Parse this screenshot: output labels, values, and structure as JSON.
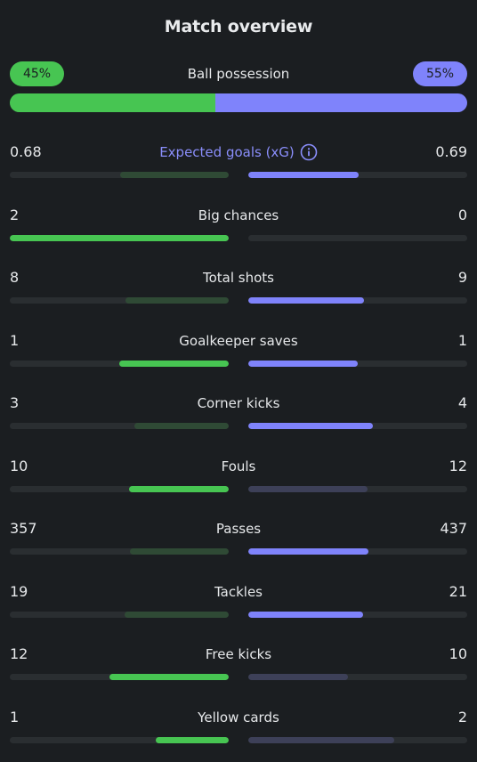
{
  "title": "Match overview",
  "possession": {
    "label": "Ball possession",
    "home": "45%",
    "away": "55%",
    "home_fraction": 0.45,
    "away_fraction": 0.55
  },
  "colors": {
    "home": "#47c552",
    "away": "#7f83fb",
    "home_dim": "#2f4a35",
    "away_dim": "#3d4058",
    "track": "#2a2e31",
    "background": "#1b1e21"
  },
  "stats": [
    {
      "label": "Expected goals (xG)",
      "home": "0.68",
      "away": "0.69",
      "home_fill": 0.495,
      "away_fill": 0.505,
      "home_leads": false,
      "away_leads": true,
      "info_icon": "info-icon"
    },
    {
      "label": "Big chances",
      "home": "2",
      "away": "0",
      "home_fill": 1.0,
      "away_fill": 0.0,
      "home_leads": true,
      "away_leads": false
    },
    {
      "label": "Total shots",
      "home": "8",
      "away": "9",
      "home_fill": 0.47,
      "away_fill": 0.53,
      "home_leads": false,
      "away_leads": true
    },
    {
      "label": "Goalkeeper saves",
      "home": "1",
      "away": "1",
      "home_fill": 0.5,
      "away_fill": 0.5,
      "home_leads": true,
      "away_leads": true
    },
    {
      "label": "Corner kicks",
      "home": "3",
      "away": "4",
      "home_fill": 0.43,
      "away_fill": 0.57,
      "home_leads": false,
      "away_leads": true
    },
    {
      "label": "Fouls",
      "home": "10",
      "away": "12",
      "home_fill": 0.455,
      "away_fill": 0.545,
      "home_leads": true,
      "away_leads": false
    },
    {
      "label": "Passes",
      "home": "357",
      "away": "437",
      "home_fill": 0.45,
      "away_fill": 0.55,
      "home_leads": false,
      "away_leads": true
    },
    {
      "label": "Tackles",
      "home": "19",
      "away": "21",
      "home_fill": 0.475,
      "away_fill": 0.525,
      "home_leads": false,
      "away_leads": true
    },
    {
      "label": "Free kicks",
      "home": "12",
      "away": "10",
      "home_fill": 0.545,
      "away_fill": 0.455,
      "home_leads": true,
      "away_leads": false
    },
    {
      "label": "Yellow cards",
      "home": "1",
      "away": "2",
      "home_fill": 0.333,
      "away_fill": 0.667,
      "home_leads": true,
      "away_leads": false
    }
  ]
}
